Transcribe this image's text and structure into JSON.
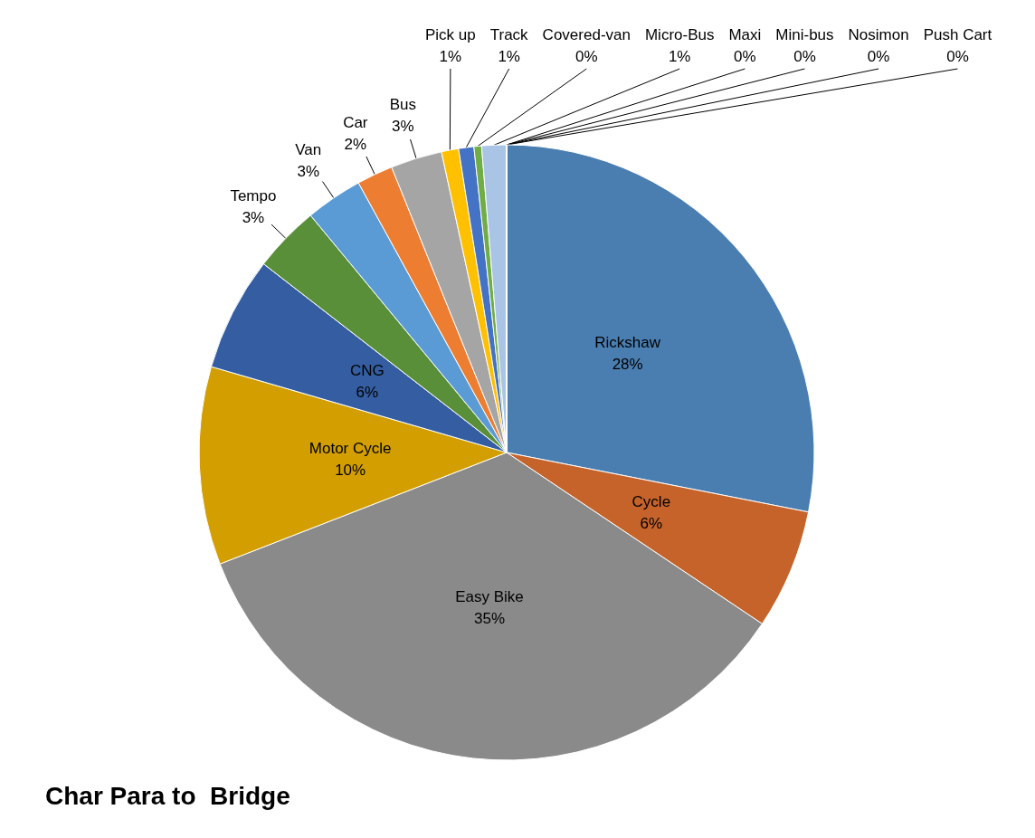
{
  "chart_data": {
    "type": "pie",
    "title": "Char Para to  Bridge",
    "categories": [
      "Rickshaw",
      "Cycle",
      "Easy Bike",
      "Motor Cycle",
      "CNG",
      "Tempo",
      "Van",
      "Car",
      "Bus",
      "Pick up",
      "Track",
      "Covered-van",
      "Micro-Bus",
      "Maxi",
      "Mini-bus",
      "Nosimon",
      "Push Cart"
    ],
    "values": [
      28.1,
      6.3,
      34.7,
      10.4,
      6.0,
      3.5,
      3.0,
      1.9,
      2.7,
      0.9,
      0.8,
      0.4,
      1.3,
      0,
      0,
      0,
      0
    ],
    "value_labels": [
      "28%",
      "6%",
      "35%",
      "10%",
      "6%",
      "3%",
      "3%",
      "2%",
      "3%",
      "1%",
      "1%",
      "0%",
      "1%",
      "0%",
      "0%",
      "0%",
      "0%"
    ],
    "colors": [
      "#4a7eb0",
      "#c5632a",
      "#8a8a8a",
      "#d39e00",
      "#345ea1",
      "#5a8f3a",
      "#5b9bd5",
      "#ed7d31",
      "#a5a5a5",
      "#ffc000",
      "#4472c4",
      "#70ad47",
      "#aac4e6",
      "#264478",
      "#9e480e",
      "#636363",
      "#997300"
    ],
    "legend": false
  }
}
